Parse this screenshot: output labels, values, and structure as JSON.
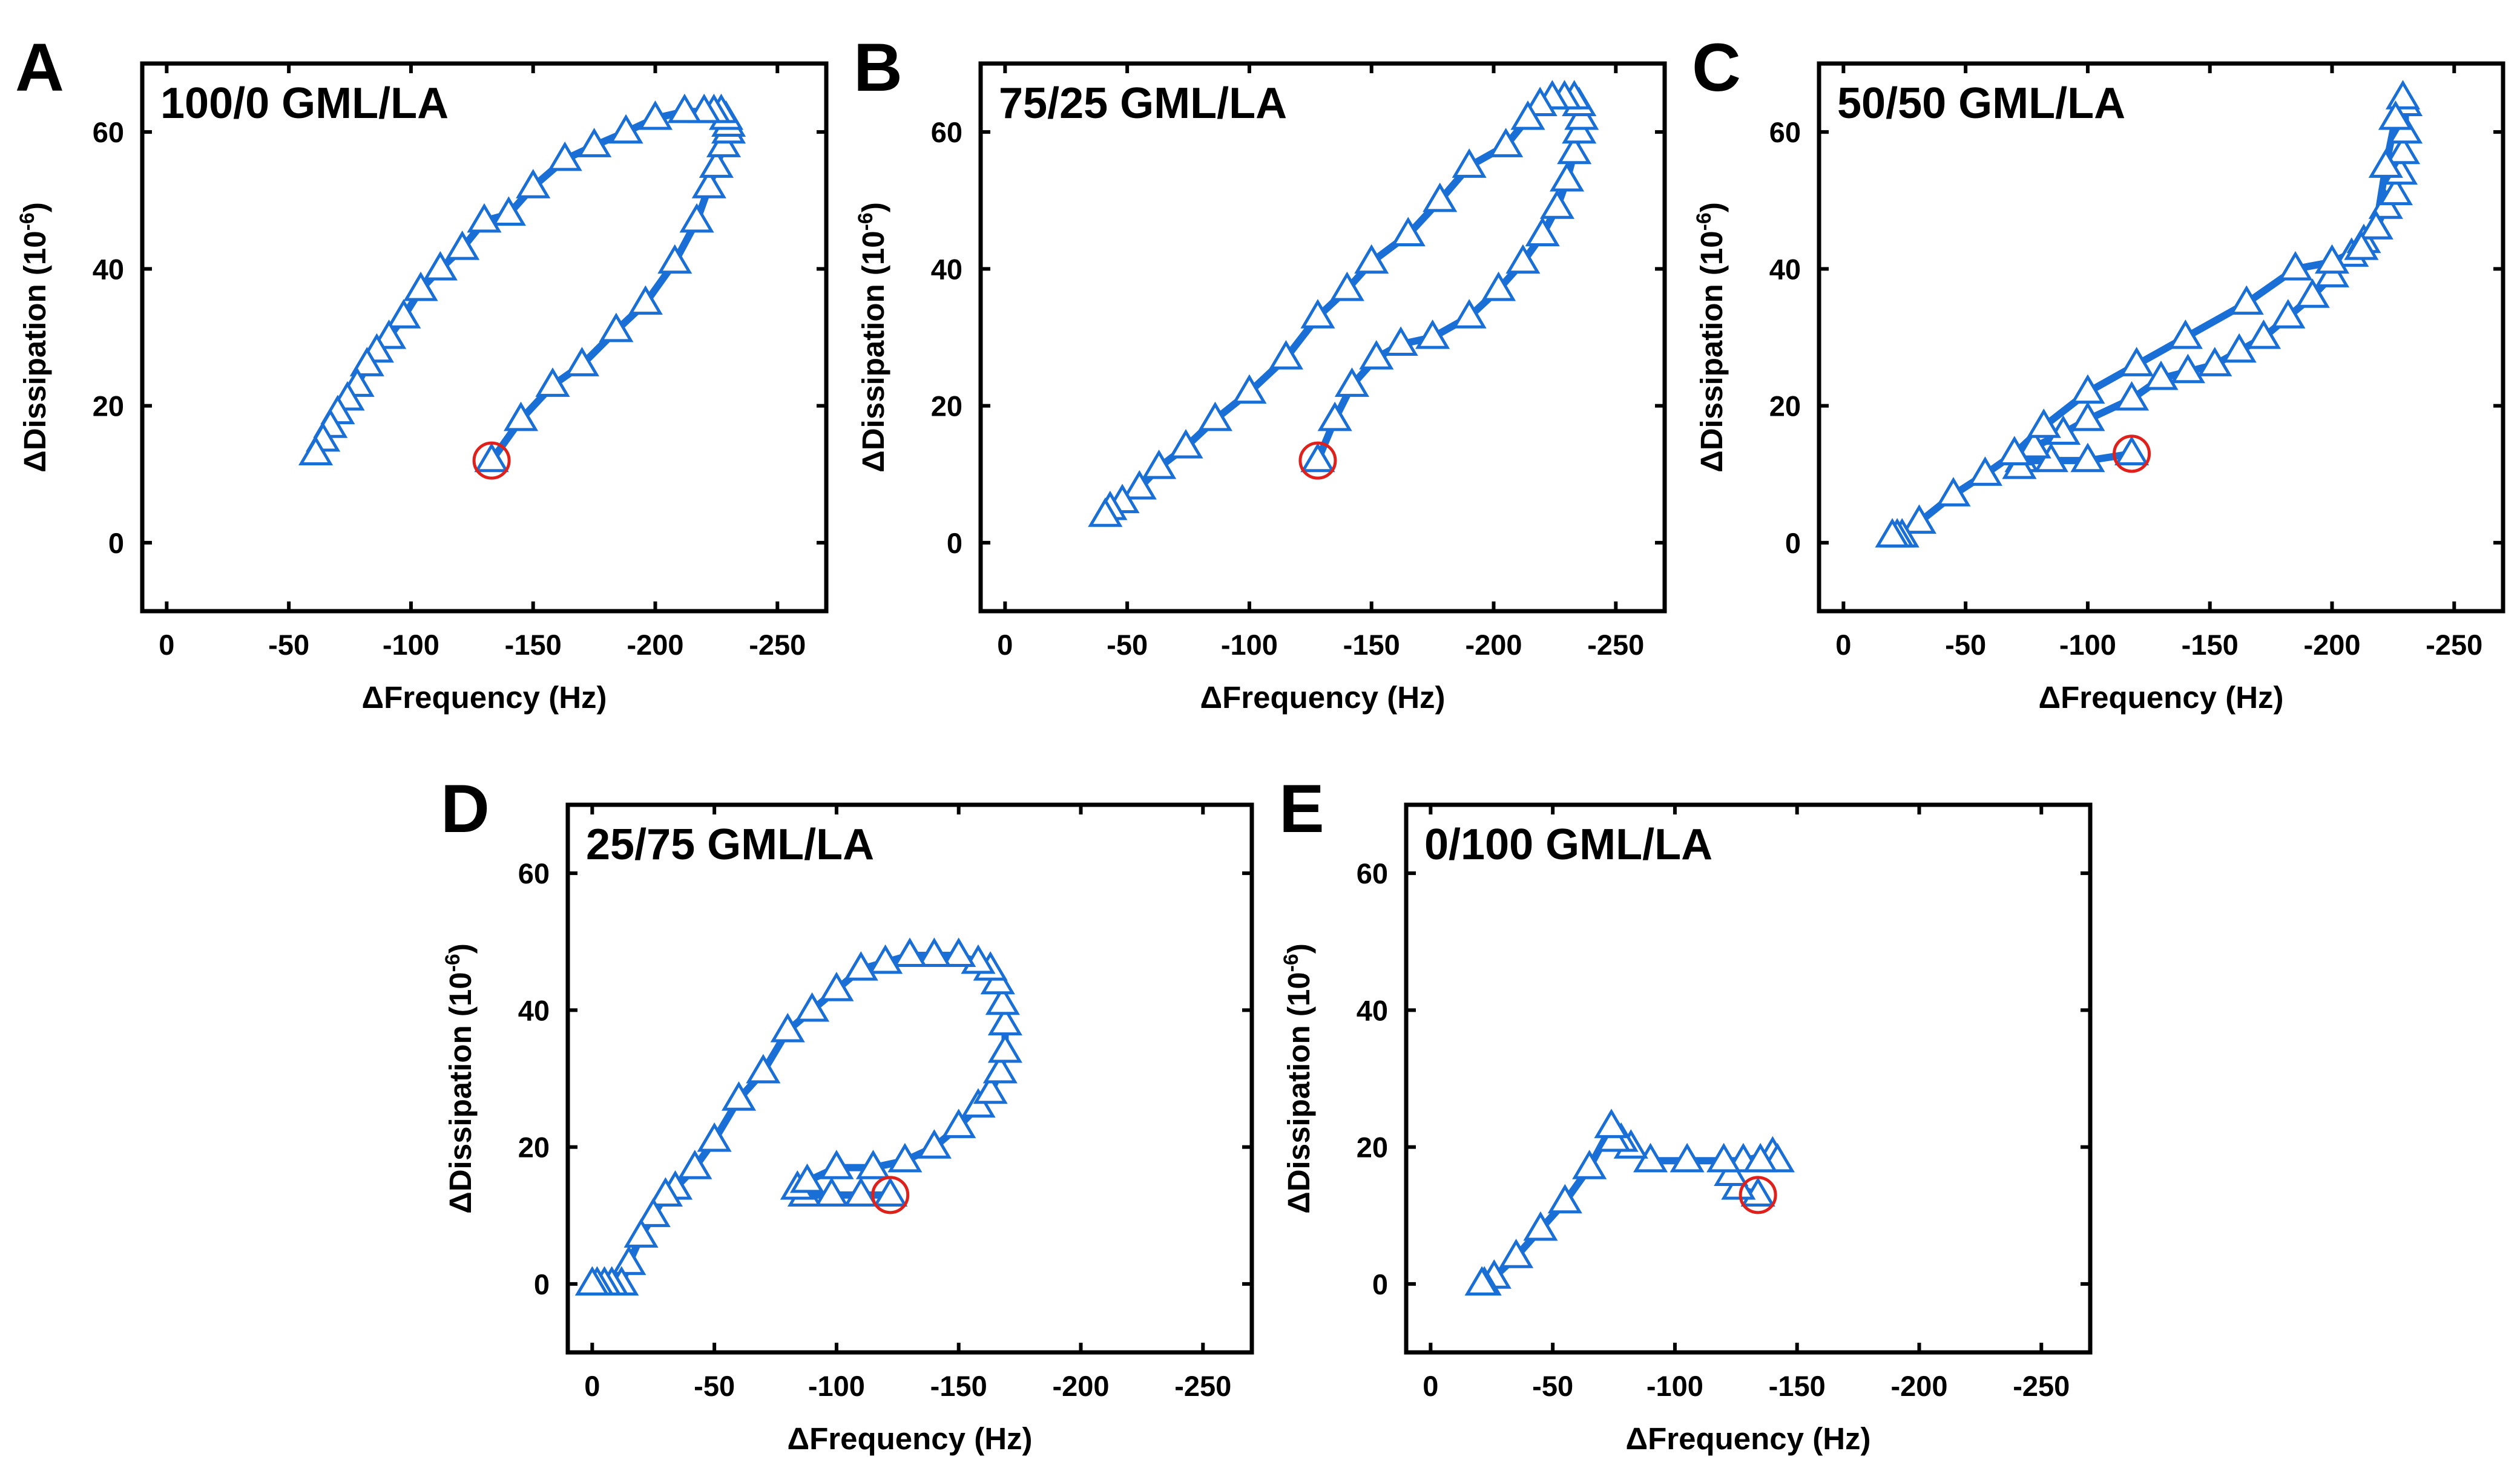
{
  "colors": {
    "series": "#1a6fd6",
    "start_marker": "#e0201b",
    "axes": "#000000",
    "background": "#ffffff"
  },
  "shared_axes": {
    "xlabel": "ΔFrequency (Hz)",
    "ylabel": "ΔDissipation (10",
    "ylabel_exponent": "-6",
    "ylabel_close": ")",
    "xlim": [
      10,
      -270
    ],
    "ylim": [
      -10,
      70
    ],
    "xticks": [
      0,
      -50,
      -100,
      -150,
      -200,
      -250
    ],
    "xtick_labels": [
      "0",
      "-50",
      "-100",
      "-150",
      "-200",
      "-250"
    ],
    "yticks": [
      0,
      20,
      40,
      60
    ],
    "ytick_labels": [
      "0",
      "20",
      "40",
      "60"
    ]
  },
  "chart_data": [
    {
      "panel": "A",
      "type": "line",
      "title": "100/0 GML/LA",
      "marker": "triangle-open",
      "start_marker": "circle",
      "xlabel": "ΔFrequency (Hz)",
      "ylabel": "ΔDissipation (10^-6)",
      "xlim": [
        10,
        -270
      ],
      "ylim": [
        -10,
        70
      ],
      "start": [
        -133,
        12
      ],
      "x": [
        -133,
        -145,
        -158,
        -170,
        -184,
        -196,
        -208,
        -217,
        -222,
        -225,
        -228,
        -230,
        -230,
        -229,
        -227,
        -224,
        -220,
        -212,
        -200,
        -188,
        -175,
        -163,
        -150,
        -140,
        -130,
        -121,
        -112,
        -104,
        -97,
        -91,
        -86,
        -82,
        -78,
        -74,
        -70,
        -67,
        -64,
        -61
      ],
      "y": [
        12,
        18,
        23,
        26,
        31,
        35,
        41,
        47,
        52,
        55,
        58,
        60,
        61,
        62,
        63,
        63,
        63,
        63,
        62,
        60,
        58,
        56,
        52,
        48,
        47,
        43,
        40,
        37,
        33,
        30,
        28,
        26,
        23,
        21,
        19,
        17,
        15,
        13
      ]
    },
    {
      "panel": "B",
      "type": "line",
      "title": "75/25 GML/LA",
      "marker": "triangle-open",
      "start_marker": "circle",
      "xlabel": "ΔFrequency (Hz)",
      "ylabel": "ΔDissipation (10^-6)",
      "xlim": [
        10,
        -270
      ],
      "ylim": [
        -10,
        70
      ],
      "start": [
        -128,
        12
      ],
      "x": [
        -128,
        -135,
        -142,
        -152,
        -162,
        -175,
        -190,
        -202,
        -212,
        -220,
        -226,
        -230,
        -233,
        -235,
        -236,
        -235,
        -233,
        -229,
        -224,
        -219,
        -214,
        -205,
        -190,
        -178,
        -165,
        -150,
        -140,
        -128,
        -115,
        -100,
        -86,
        -74,
        -63,
        -55,
        -48,
        -43,
        -41
      ],
      "y": [
        12,
        18,
        23,
        27,
        29,
        30,
        33,
        37,
        41,
        45,
        49,
        53,
        57,
        60,
        62,
        64,
        65,
        65,
        65,
        64,
        62,
        58,
        55,
        50,
        45,
        41,
        37,
        33,
        27,
        22,
        18,
        14,
        11,
        8,
        6,
        5,
        4
      ]
    },
    {
      "panel": "C",
      "type": "line",
      "title": "50/50 GML/LA",
      "marker": "triangle-open",
      "start_marker": "circle",
      "xlabel": "ΔFrequency (Hz)",
      "ylabel": "ΔDissipation (10^-6)",
      "xlim": [
        10,
        -270
      ],
      "ylim": [
        -10,
        70
      ],
      "start": [
        -118,
        13
      ],
      "x": [
        -118,
        -100,
        -85,
        -73,
        -72,
        -78,
        -90,
        -100,
        -118,
        -130,
        -141,
        -152,
        -162,
        -172,
        -182,
        -192,
        -200,
        -208,
        -213,
        -218,
        -222,
        -226,
        -228,
        -229,
        -230,
        -230,
        -229,
        -226,
        -222,
        -218,
        -212,
        -200,
        -185,
        -165,
        -140,
        -120,
        -100,
        -82,
        -70,
        -58,
        -45,
        -31,
        -24,
        -22,
        -20
      ],
      "y": [
        13,
        12,
        12,
        12,
        11,
        14,
        16,
        18,
        21,
        24,
        25,
        26,
        28,
        30,
        33,
        36,
        39,
        42,
        44,
        46,
        49,
        51,
        54,
        57,
        60,
        64,
        65,
        62,
        55,
        46,
        43,
        41,
        40,
        35,
        30,
        26,
        22,
        17,
        13,
        10,
        7,
        3,
        1,
        1,
        1
      ]
    },
    {
      "panel": "D",
      "type": "line",
      "title": "25/75 GML/LA",
      "marker": "triangle-open",
      "start_marker": "circle",
      "xlabel": "ΔFrequency (Hz)",
      "ylabel": "ΔDissipation (10^-6)",
      "xlim": [
        10,
        -270
      ],
      "ylim": [
        -10,
        70
      ],
      "start": [
        -122,
        13
      ],
      "x": [
        -122,
        -110,
        -98,
        -87,
        -84,
        -88,
        -100,
        -115,
        -128,
        -140,
        -150,
        -158,
        -163,
        -167,
        -169,
        -169,
        -168,
        -166,
        -163,
        -158,
        -150,
        -140,
        -130,
        -120,
        -110,
        -100,
        -90,
        -80,
        -70,
        -60,
        -50,
        -42,
        -34,
        -30,
        -25,
        -20,
        -15,
        -12,
        -8,
        -5,
        -2,
        0
      ],
      "y": [
        13,
        13,
        13,
        13,
        14,
        15,
        17,
        17,
        18,
        20,
        23,
        26,
        28,
        31,
        34,
        38,
        41,
        44,
        46,
        47,
        48,
        48,
        48,
        47,
        46,
        43,
        40,
        37,
        31,
        27,
        21,
        17,
        14,
        13,
        10,
        7,
        3,
        0,
        0,
        0,
        0,
        0
      ]
    },
    {
      "panel": "E",
      "type": "line",
      "title": "0/100 GML/LA",
      "marker": "triangle-open",
      "start_marker": "circle",
      "xlabel": "ΔFrequency (Hz)",
      "ylabel": "ΔDissipation (10^-6)",
      "xlim": [
        10,
        -270
      ],
      "ylim": [
        -10,
        70
      ],
      "start": [
        -134,
        13
      ],
      "x": [
        -134,
        -126,
        -123,
        -128,
        -140,
        -142,
        -135,
        -120,
        -105,
        -90,
        -82,
        -78,
        -75,
        -74,
        -65,
        -55,
        -45,
        -35,
        -26,
        -22,
        -21
      ],
      "y": [
        13,
        14,
        16,
        18,
        19,
        18,
        18,
        18,
        18,
        18,
        20,
        21,
        21,
        23,
        17,
        12,
        8,
        4,
        1,
        0,
        0
      ]
    }
  ]
}
